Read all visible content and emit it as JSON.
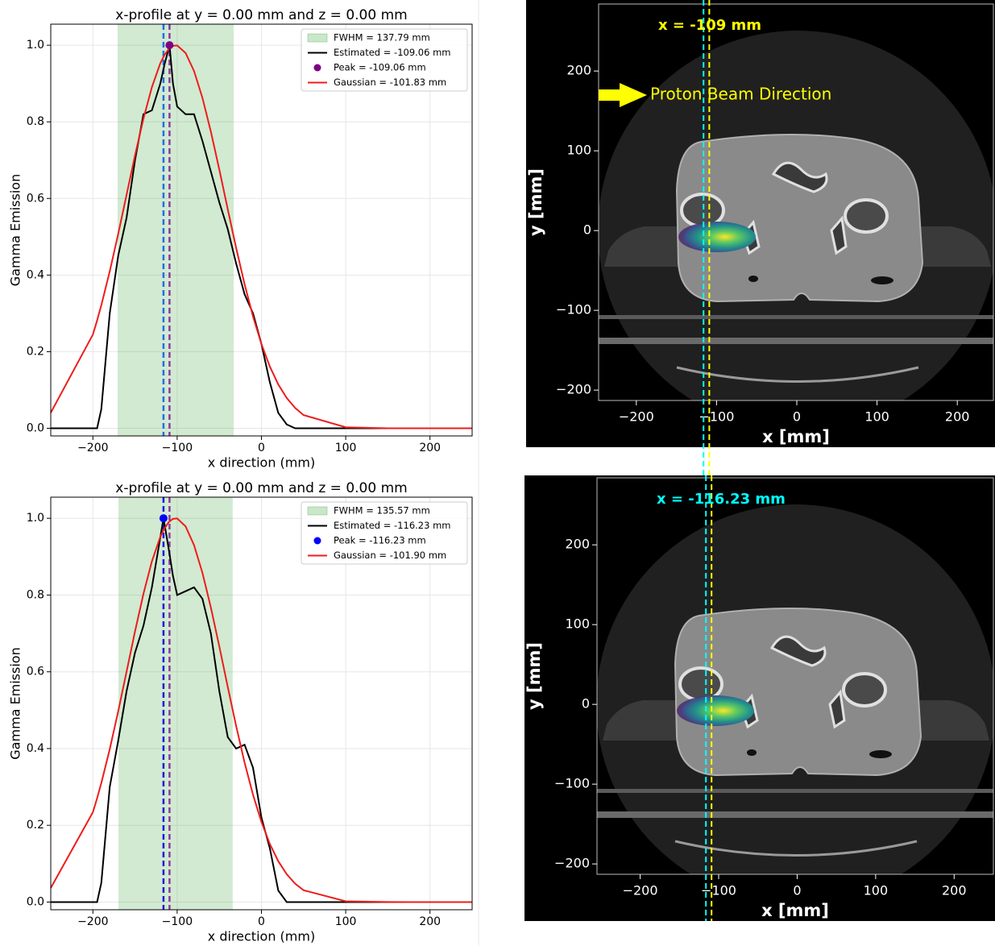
{
  "chart_data": [
    {
      "type": "line",
      "title": "x-profile at y = 0.00 mm and z = 0.00 mm",
      "xlabel": "x direction (mm)",
      "ylabel": "Gamma Emission",
      "x": [
        -250,
        -200,
        -195,
        -190,
        -180,
        -170,
        -160,
        -150,
        -140,
        -130,
        -120,
        -115,
        -109.06,
        -105,
        -100,
        -90,
        -80,
        -70,
        -60,
        -50,
        -40,
        -30,
        -20,
        -10,
        0,
        10,
        20,
        30,
        40,
        50,
        100,
        150,
        200,
        250
      ],
      "series": [
        {
          "name": "Estimated = -109.06 mm",
          "color": "#000000",
          "values": [
            0,
            0,
            0,
            0.05,
            0.3,
            0.45,
            0.55,
            0.7,
            0.82,
            0.83,
            0.9,
            0.95,
            1.0,
            0.9,
            0.84,
            0.82,
            0.82,
            0.75,
            0.67,
            0.59,
            0.52,
            0.43,
            0.35,
            0.3,
            0.22,
            0.12,
            0.04,
            0.01,
            0,
            0,
            0,
            0,
            0,
            0
          ]
        },
        {
          "name": "Gaussian = -101.83 mm",
          "color": "#ee1c1c",
          "values": [
            0.0405,
            0.2447,
            0.2815,
            0.3213,
            0.4096,
            0.5073,
            0.61,
            0.7126,
            0.8083,
            0.8906,
            0.9529,
            0.975,
            0.9924,
            0.9985,
            0.9995,
            0.9798,
            0.9328,
            0.8625,
            0.7744,
            0.6755,
            0.5722,
            0.4707,
            0.3761,
            0.2918,
            0.2199,
            0.161,
            0.1144,
            0.079,
            0.053,
            0.0345,
            0.0026,
            0.0001,
            0,
            0
          ]
        }
      ],
      "fwhm": {
        "name": "FWHM = 137.79 mm",
        "color": "#2ca02c",
        "span": [
          -170.7,
          -32.9
        ]
      },
      "peak": {
        "name": "Peak = -109.06 mm",
        "color": "#800080",
        "x": -109.06,
        "y": 1.0
      },
      "vlines": [
        {
          "x": -116.23,
          "color": "#1e6fe8"
        },
        {
          "x": -109.06,
          "color": "#8e3a9e"
        }
      ],
      "xlim": [
        -250,
        250
      ],
      "ylim": [
        -0.02,
        1.055
      ],
      "xticks": [
        {
          "value": -200,
          "label": "−200"
        },
        {
          "value": -100,
          "label": "−100"
        },
        0,
        100,
        200
      ],
      "yticks": [
        {
          "value": 0,
          "label": "0.0"
        },
        0.2,
        0.4,
        0.6,
        0.8,
        {
          "value": 1,
          "label": "1.0"
        }
      ],
      "grid": true
    },
    {
      "type": "line",
      "title": "x-profile at y = 0.00 mm and z = 0.00 mm",
      "xlabel": "x direction (mm)",
      "ylabel": "Gamma Emission",
      "x": [
        -250,
        -200,
        -195,
        -190,
        -180,
        -170,
        -160,
        -150,
        -140,
        -130,
        -120,
        -116.23,
        -110,
        -105,
        -100,
        -90,
        -80,
        -70,
        -60,
        -50,
        -40,
        -30,
        -20,
        -10,
        0,
        10,
        20,
        30,
        40,
        50,
        100,
        150,
        200,
        250
      ],
      "series": [
        {
          "name": "Estimated = -116.23 mm",
          "color": "#000000",
          "values": [
            0,
            0,
            0,
            0.05,
            0.3,
            0.42,
            0.55,
            0.65,
            0.72,
            0.82,
            0.95,
            1.0,
            0.92,
            0.85,
            0.8,
            0.81,
            0.82,
            0.79,
            0.7,
            0.55,
            0.43,
            0.4,
            0.41,
            0.35,
            0.22,
            0.14,
            0.03,
            0,
            0,
            0,
            0,
            0,
            0,
            0
          ]
        },
        {
          "name": "Gaussian = -101.90 mm",
          "color": "#ee1c1c",
          "values": [
            0.0366,
            0.2341,
            0.2705,
            0.3101,
            0.3984,
            0.4968,
            0.6009,
            0.7054,
            0.8033,
            0.8877,
            0.9518,
            0.9695,
            0.9901,
            0.9986,
            0.9995,
            0.9789,
            0.9302,
            0.8577,
            0.7674,
            0.6661,
            0.561,
            0.4585,
            0.3635,
            0.2797,
            0.2088,
            0.1512,
            0.1063,
            0.0725,
            0.048,
            0.0308,
            0.0021,
            0.0001,
            0,
            0
          ]
        }
      ],
      "fwhm": {
        "name": "FWHM = 135.57 mm",
        "color": "#2ca02c",
        "span": [
          -169.7,
          -34.1
        ]
      },
      "peak": {
        "name": "Peak = -116.23 mm",
        "color": "#0000ff",
        "x": -116.23,
        "y": 1.0
      },
      "vlines": [
        {
          "x": -116.23,
          "color": "#1a1adf"
        },
        {
          "x": -109.06,
          "color": "#8e3a9e"
        }
      ],
      "xlim": [
        -250,
        250
      ],
      "ylim": [
        -0.02,
        1.055
      ],
      "xticks": [
        {
          "value": -200,
          "label": "−200"
        },
        {
          "value": -100,
          "label": "−100"
        },
        0,
        100,
        200
      ],
      "yticks": [
        {
          "value": 0,
          "label": "0.0"
        },
        0.2,
        0.4,
        0.6,
        0.8,
        {
          "value": 1,
          "label": "1.0"
        }
      ],
      "grid": true
    },
    {
      "type": "image",
      "xlabel": "x [mm]",
      "ylabel": "y [mm]",
      "annotation": {
        "text": "x = -109 mm",
        "color": "#ffff00"
      },
      "beam_label": "Proton Beam Direction",
      "beam_color": "#ffff00",
      "vlines": [
        {
          "x": -116.23,
          "color": "#00ffff"
        },
        {
          "x": -109.06,
          "color": "#ffff00"
        }
      ],
      "xlim": [
        -247,
        245
      ],
      "ylim": [
        -213,
        284
      ],
      "xticks": [
        {
          "value": -200,
          "label": "−200"
        },
        {
          "value": -100,
          "label": "−100"
        },
        0,
        100,
        200
      ],
      "yticks": [
        {
          "value": -200,
          "label": "−200"
        },
        {
          "value": -100,
          "label": "−100"
        },
        0,
        100,
        200
      ]
    },
    {
      "type": "image",
      "xlabel": "x [mm]",
      "ylabel": "y [mm]",
      "annotation": {
        "text": "x = -116.23 mm",
        "color": "#00ffff"
      },
      "vlines": [
        {
          "x": -116.23,
          "color": "#00ffff"
        },
        {
          "x": -109.06,
          "color": "#ffff00"
        }
      ],
      "xlim": [
        -255,
        250
      ],
      "ylim": [
        -213,
        284
      ],
      "xticks": [
        {
          "value": -200,
          "label": "−200"
        },
        {
          "value": -100,
          "label": "−100"
        },
        0,
        100,
        200
      ],
      "yticks": [
        {
          "value": -200,
          "label": "−200"
        },
        {
          "value": -100,
          "label": "−100"
        },
        0,
        100,
        200
      ]
    }
  ]
}
